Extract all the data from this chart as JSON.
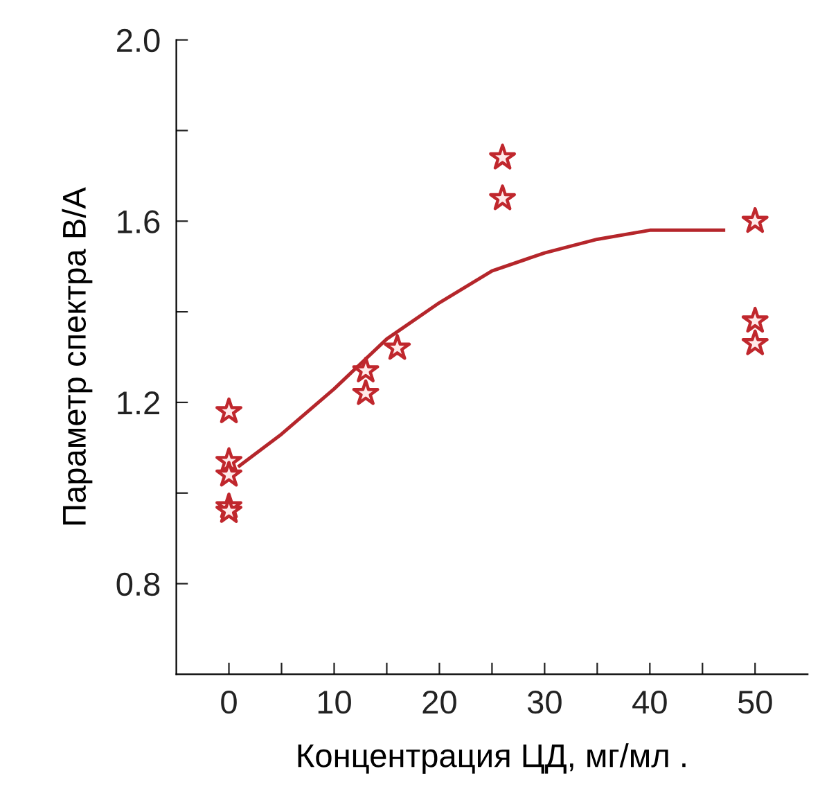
{
  "chart_data": {
    "type": "scatter",
    "xlabel": "Концентрация ЦД, мг/мл .",
    "ylabel": "Параметр спектра B/A",
    "xlim": [
      -5,
      55
    ],
    "xticks": [
      0,
      {
        "value": 5,
        "label": null
      },
      10,
      {
        "value": 15,
        "label": null
      },
      20,
      {
        "value": 25,
        "label": null
      },
      30,
      {
        "value": 35,
        "label": null
      },
      40,
      {
        "value": 45,
        "label": null
      },
      50
    ],
    "ylim": [
      0.6,
      2.0
    ],
    "yticks": [
      0.8,
      {
        "value": 1.0,
        "label": null
      },
      1.2,
      {
        "value": 1.4,
        "label": null
      },
      1.6,
      {
        "value": 1.8,
        "label": null
      },
      {
        "value": 2.0,
        "label": "2.0"
      }
    ],
    "grid": false,
    "legend": false,
    "series": [
      {
        "marker": "star",
        "color": "#c0272d",
        "x": [
          0,
          0,
          0,
          0,
          0,
          13,
          13,
          16,
          26,
          26,
          50,
          50,
          50
        ],
        "values": [
          1.18,
          1.07,
          1.04,
          0.97,
          0.96,
          1.27,
          1.22,
          1.32,
          1.74,
          1.65,
          1.6,
          1.38,
          1.33
        ]
      },
      {
        "type": "line",
        "marker": "none",
        "line_style": "solid",
        "color": "#b5262b",
        "x": [
          1,
          5,
          10,
          15,
          20,
          25,
          30,
          35,
          40,
          47
        ],
        "values": [
          1.06,
          1.13,
          1.23,
          1.34,
          1.42,
          1.49,
          1.53,
          1.56,
          1.58,
          1.58
        ]
      }
    ]
  }
}
